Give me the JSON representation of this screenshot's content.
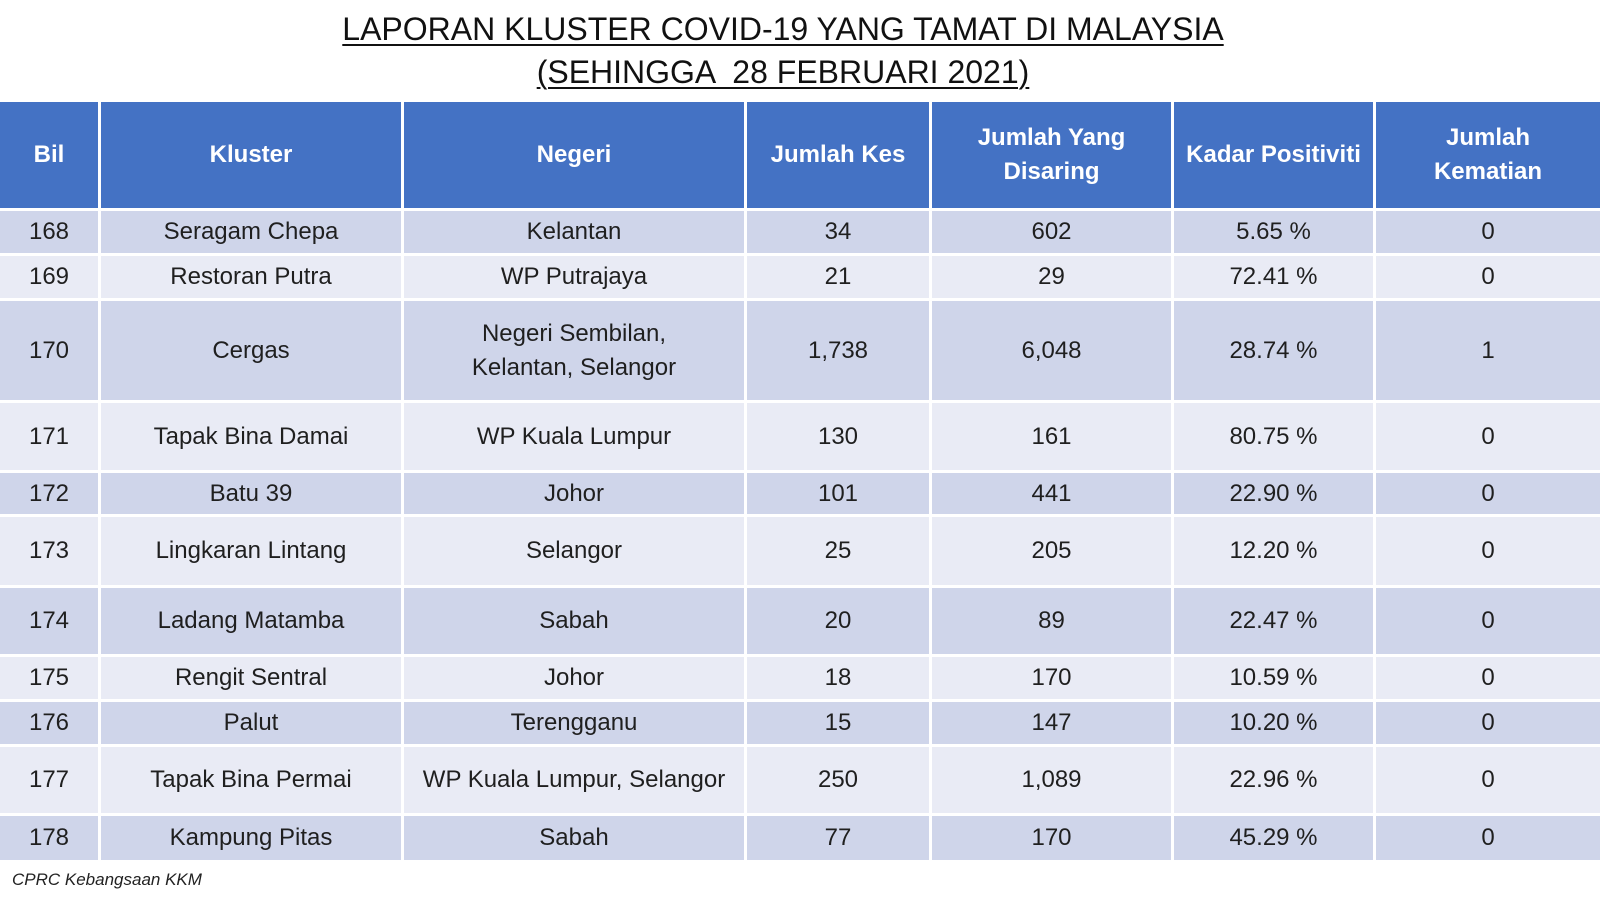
{
  "title": {
    "line1": "LAPORAN KLUSTER COVID-19 YANG TAMAT DI MALAYSIA",
    "line2": "(SEHINGGA  28 FEBRUARI 2021)"
  },
  "colors": {
    "header_bg": "#4472C4",
    "header_text": "#FFFFFF",
    "row_dark": "#CFD5EA",
    "row_light": "#E9EBF5"
  },
  "table": {
    "headers": {
      "bil": "Bil",
      "kluster": "Kluster",
      "negeri": "Negeri",
      "jumlah_kes": "Jumlah Kes",
      "jumlah_disaring": "Jumlah Yang Disaring",
      "kadar_positiviti": "Kadar Positiviti",
      "jumlah_kematian": "Jumlah Kematian"
    },
    "rows": [
      {
        "bil": "168",
        "kluster": "Seragam Chepa",
        "negeri": "Kelantan",
        "jumlah_kes": "34",
        "jumlah_disaring": "602",
        "kadar_positiviti": "5.65 %",
        "jumlah_kematian": "0"
      },
      {
        "bil": "169",
        "kluster": "Restoran Putra",
        "negeri": "WP Putrajaya",
        "jumlah_kes": "21",
        "jumlah_disaring": "29",
        "kadar_positiviti": "72.41 %",
        "jumlah_kematian": "0"
      },
      {
        "bil": "170",
        "kluster": "Cergas",
        "negeri": "Negeri Sembilan, Kelantan, Selangor",
        "jumlah_kes": "1,738",
        "jumlah_disaring": "6,048",
        "kadar_positiviti": "28.74 %",
        "jumlah_kematian": "1"
      },
      {
        "bil": "171",
        "kluster": "Tapak Bina Damai",
        "negeri": "WP Kuala Lumpur",
        "jumlah_kes": "130",
        "jumlah_disaring": "161",
        "kadar_positiviti": "80.75 %",
        "jumlah_kematian": "0"
      },
      {
        "bil": "172",
        "kluster": "Batu 39",
        "negeri": "Johor",
        "jumlah_kes": "101",
        "jumlah_disaring": "441",
        "kadar_positiviti": "22.90 %",
        "jumlah_kematian": "0"
      },
      {
        "bil": "173",
        "kluster": "Lingkaran Lintang",
        "negeri": "Selangor",
        "jumlah_kes": "25",
        "jumlah_disaring": "205",
        "kadar_positiviti": "12.20 %",
        "jumlah_kematian": "0"
      },
      {
        "bil": "174",
        "kluster": "Ladang Matamba",
        "negeri": "Sabah",
        "jumlah_kes": "20",
        "jumlah_disaring": "89",
        "kadar_positiviti": "22.47 %",
        "jumlah_kematian": "0"
      },
      {
        "bil": "175",
        "kluster": "Rengit Sentral",
        "negeri": "Johor",
        "jumlah_kes": "18",
        "jumlah_disaring": "170",
        "kadar_positiviti": "10.59 %",
        "jumlah_kematian": "0"
      },
      {
        "bil": "176",
        "kluster": "Palut",
        "negeri": "Terengganu",
        "jumlah_kes": "15",
        "jumlah_disaring": "147",
        "kadar_positiviti": "10.20 %",
        "jumlah_kematian": "0"
      },
      {
        "bil": "177",
        "kluster": "Tapak Bina Permai",
        "negeri": "WP Kuala Lumpur, Selangor",
        "jumlah_kes": "250",
        "jumlah_disaring": "1,089",
        "kadar_positiviti": "22.96 %",
        "jumlah_kematian": "0"
      },
      {
        "bil": "178",
        "kluster": "Kampung Pitas",
        "negeri": "Sabah",
        "jumlah_kes": "77",
        "jumlah_disaring": "170",
        "kadar_positiviti": "45.29 %",
        "jumlah_kematian": "0"
      }
    ]
  },
  "footer": {
    "source": "CPRC Kebangsaan KKM"
  }
}
